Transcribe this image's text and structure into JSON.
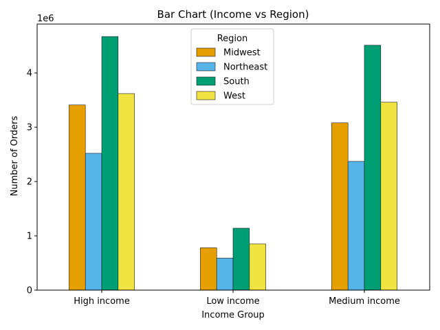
{
  "chart_data": {
    "type": "bar",
    "title": "Bar Chart (Income vs Region)",
    "xlabel": "Income Group",
    "ylabel": "Number of Orders",
    "y_offset_label": "1e6",
    "categories": [
      "High income",
      "Low income",
      "Medium income"
    ],
    "series": [
      {
        "name": "Midwest",
        "color": "#E69F00",
        "values": [
          3410000,
          780000,
          3080000
        ]
      },
      {
        "name": "Northeast",
        "color": "#56B4E9",
        "values": [
          2520000,
          590000,
          2370000
        ]
      },
      {
        "name": "South",
        "color": "#009E73",
        "values": [
          4670000,
          1140000,
          4510000
        ]
      },
      {
        "name": "West",
        "color": "#F0E442",
        "values": [
          3620000,
          850000,
          3460000
        ]
      }
    ],
    "ylim": [
      0,
      4900000
    ],
    "yticks": [
      0,
      1000000,
      2000000,
      3000000,
      4000000
    ],
    "ytick_labels": [
      "0",
      "1",
      "2",
      "3",
      "4"
    ],
    "legend_title": "Region",
    "legend_position": "top-center",
    "grid": false
  }
}
